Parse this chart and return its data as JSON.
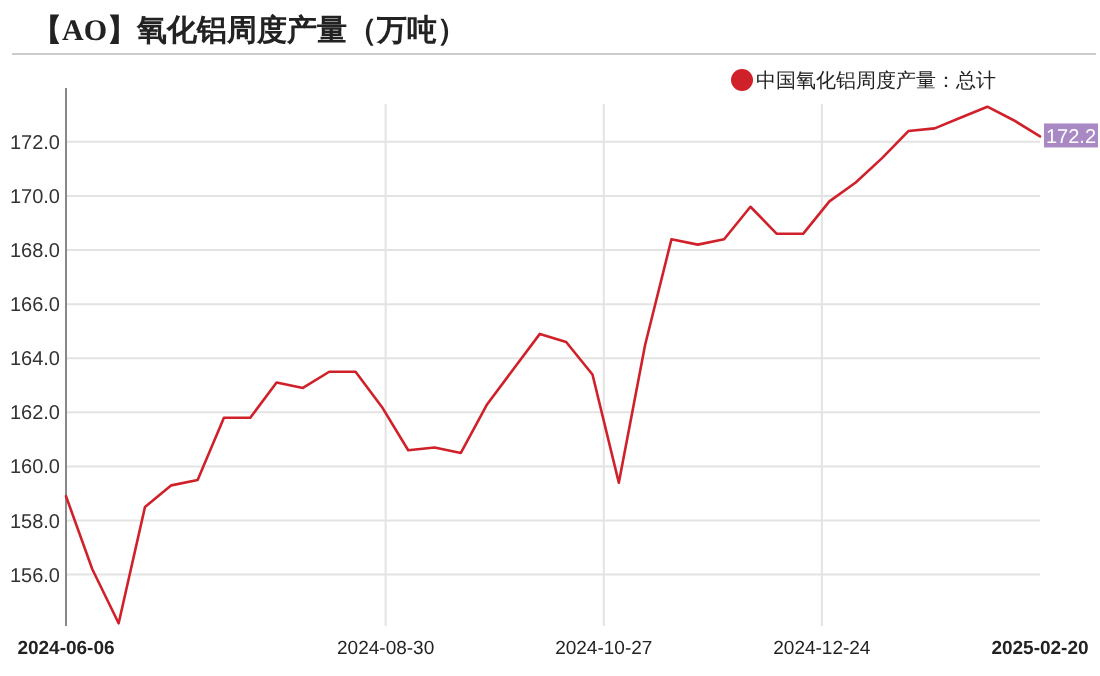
{
  "chart_data": {
    "type": "line",
    "title": "【AO】氧化铝周度产量（万吨）",
    "x": [
      "2024-06-06",
      "2024-06-13",
      "2024-06-20",
      "2024-06-27",
      "2024-07-04",
      "2024-07-11",
      "2024-07-18",
      "2024-07-25",
      "2024-08-01",
      "2024-08-08",
      "2024-08-15",
      "2024-08-22",
      "2024-08-29",
      "2024-09-05",
      "2024-09-12",
      "2024-09-19",
      "2024-09-26",
      "2024-10-03",
      "2024-10-10",
      "2024-10-17",
      "2024-10-24",
      "2024-10-31",
      "2024-11-07",
      "2024-11-14",
      "2024-11-21",
      "2024-11-28",
      "2024-12-05",
      "2024-12-12",
      "2024-12-19",
      "2024-12-26",
      "2025-01-02",
      "2025-01-09",
      "2025-01-16",
      "2025-01-23",
      "2025-01-30",
      "2025-02-06",
      "2025-02-13",
      "2025-02-20"
    ],
    "series": [
      {
        "name": "中国氧化铝周度产量：总计",
        "color": "#d0202a",
        "values": [
          158.9,
          156.2,
          154.2,
          158.5,
          159.3,
          159.5,
          161.8,
          161.8,
          163.1,
          162.9,
          163.5,
          163.5,
          162.2,
          160.6,
          160.7,
          160.5,
          162.3,
          163.6,
          164.9,
          164.6,
          163.4,
          159.4,
          164.5,
          168.4,
          168.2,
          168.4,
          169.6,
          168.6,
          168.6,
          169.8,
          170.5,
          171.4,
          172.4,
          172.5,
          172.9,
          173.3,
          172.8,
          172.2
        ]
      }
    ],
    "xlim": [
      "2024-06-06",
      "2025-02-20"
    ],
    "xticks": [
      "2024-06-06",
      "2024-08-30",
      "2024-10-27",
      "2024-12-24",
      "2025-02-20"
    ],
    "ylim": [
      154.1,
      173.4
    ],
    "yticks": [
      {
        "value": 156,
        "label": "156.0"
      },
      {
        "value": 158,
        "label": "158.0"
      },
      {
        "value": 160,
        "label": "160.0"
      },
      {
        "value": 162,
        "label": "162.0"
      },
      {
        "value": 164,
        "label": "164.0"
      },
      {
        "value": 166,
        "label": "166.0"
      },
      {
        "value": 168,
        "label": "168.0"
      },
      {
        "value": 170,
        "label": "170.0"
      },
      {
        "value": 172,
        "label": "172.0"
      }
    ],
    "annotations": [
      {
        "text": "172.2",
        "x": "2025-02-20",
        "y": 172.2
      }
    ],
    "grid": true,
    "legend": "top right",
    "marker": "none",
    "line_style": "solid"
  }
}
